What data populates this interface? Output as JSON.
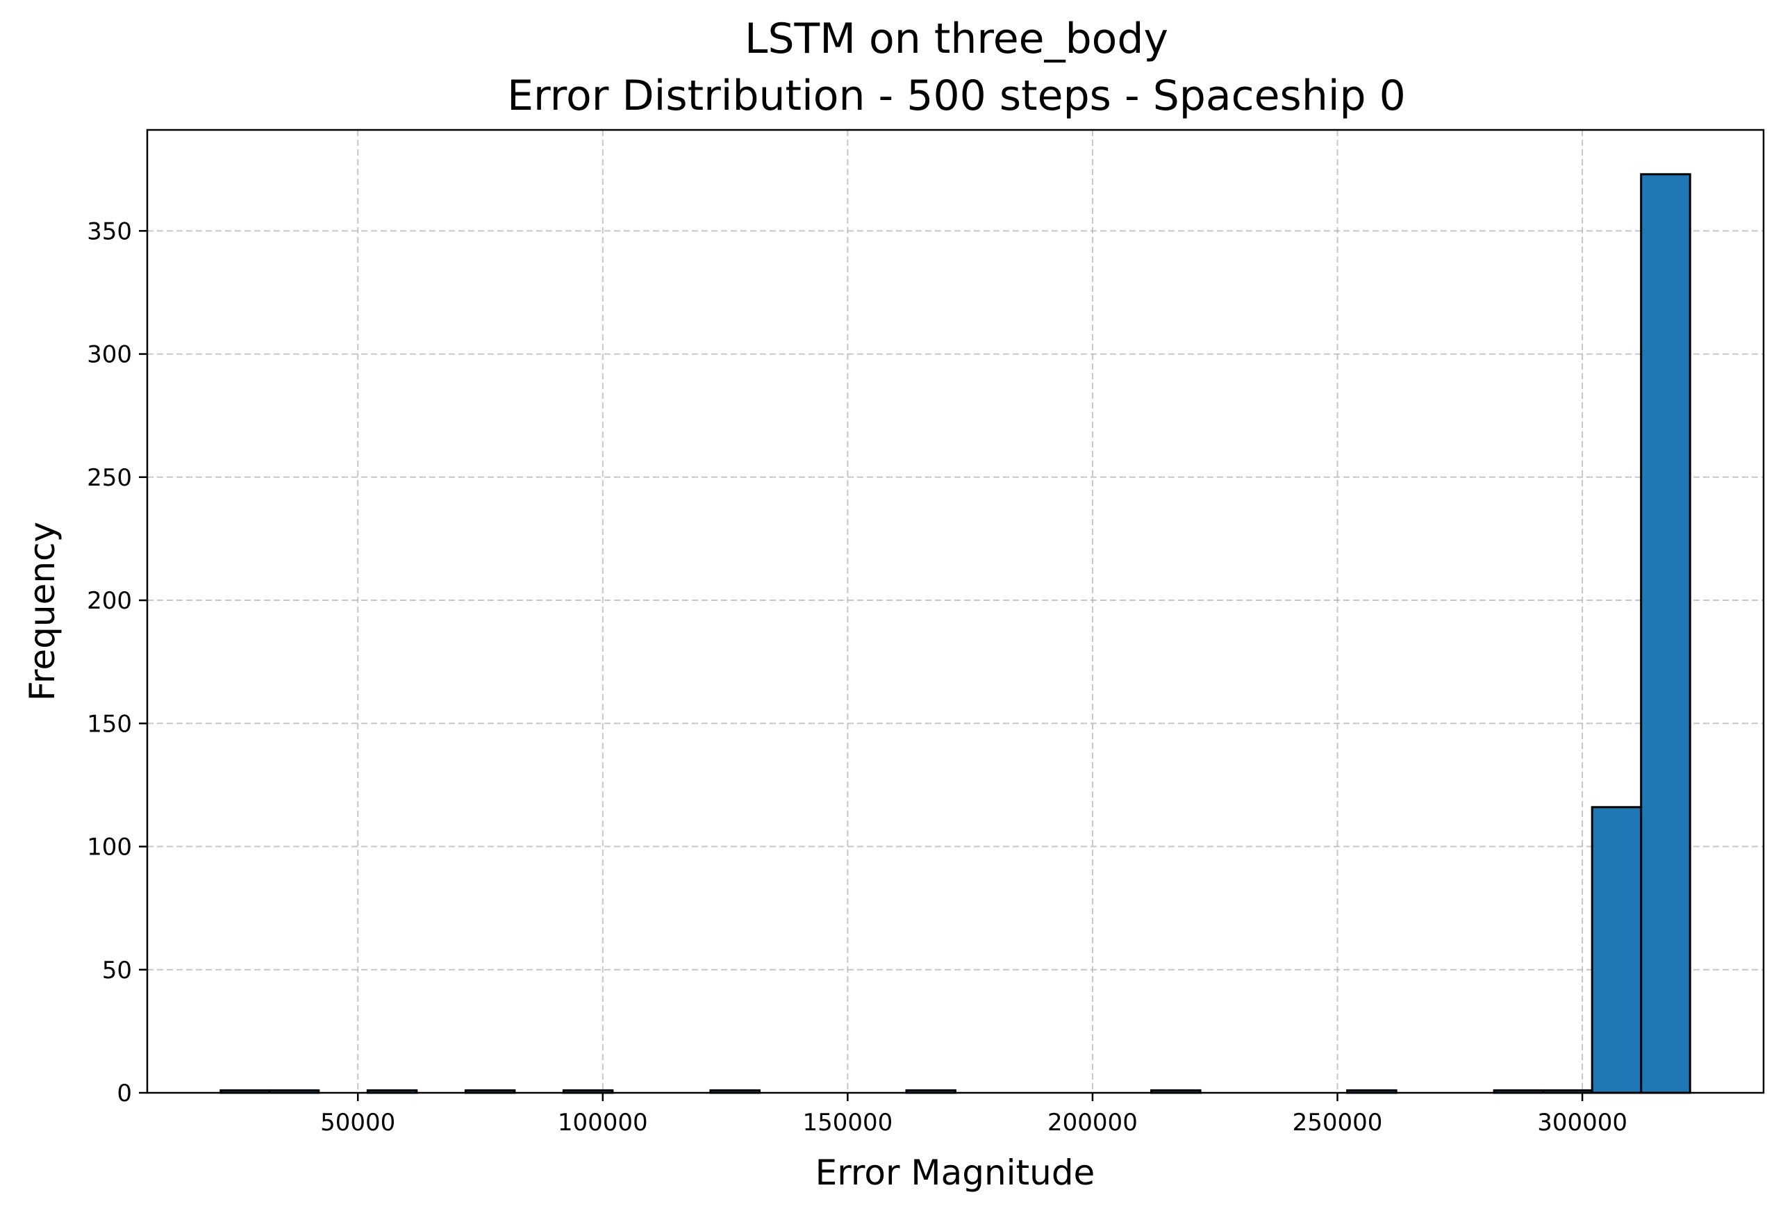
{
  "chart_data": {
    "type": "bar",
    "title": "LSTM on three_body",
    "subtitle": "Error Distribution - 500 steps - Spaceship 0",
    "xlabel": "Error Magnitude",
    "ylabel": "Frequency",
    "xlim": [
      7000,
      337000
    ],
    "ylim": [
      0,
      391
    ],
    "x_ticks": [
      50000,
      100000,
      150000,
      200000,
      250000,
      300000
    ],
    "y_ticks": [
      0,
      50,
      100,
      150,
      200,
      250,
      300,
      350
    ],
    "grid": true,
    "bar_color": "#1f77b4",
    "edge_color": "#000000",
    "bins": [
      {
        "x0": 22000,
        "x1": 32000,
        "count": 1
      },
      {
        "x0": 32000,
        "x1": 42000,
        "count": 1
      },
      {
        "x0": 52000,
        "x1": 62000,
        "count": 1
      },
      {
        "x0": 72000,
        "x1": 82000,
        "count": 1
      },
      {
        "x0": 92000,
        "x1": 102000,
        "count": 1
      },
      {
        "x0": 122000,
        "x1": 132000,
        "count": 1
      },
      {
        "x0": 162000,
        "x1": 172000,
        "count": 1
      },
      {
        "x0": 212000,
        "x1": 222000,
        "count": 1
      },
      {
        "x0": 252000,
        "x1": 262000,
        "count": 1
      },
      {
        "x0": 282000,
        "x1": 292000,
        "count": 1
      },
      {
        "x0": 292000,
        "x1": 302000,
        "count": 1
      },
      {
        "x0": 302000,
        "x1": 312000,
        "count": 116
      },
      {
        "x0": 312000,
        "x1": 322000,
        "count": 373
      }
    ]
  }
}
